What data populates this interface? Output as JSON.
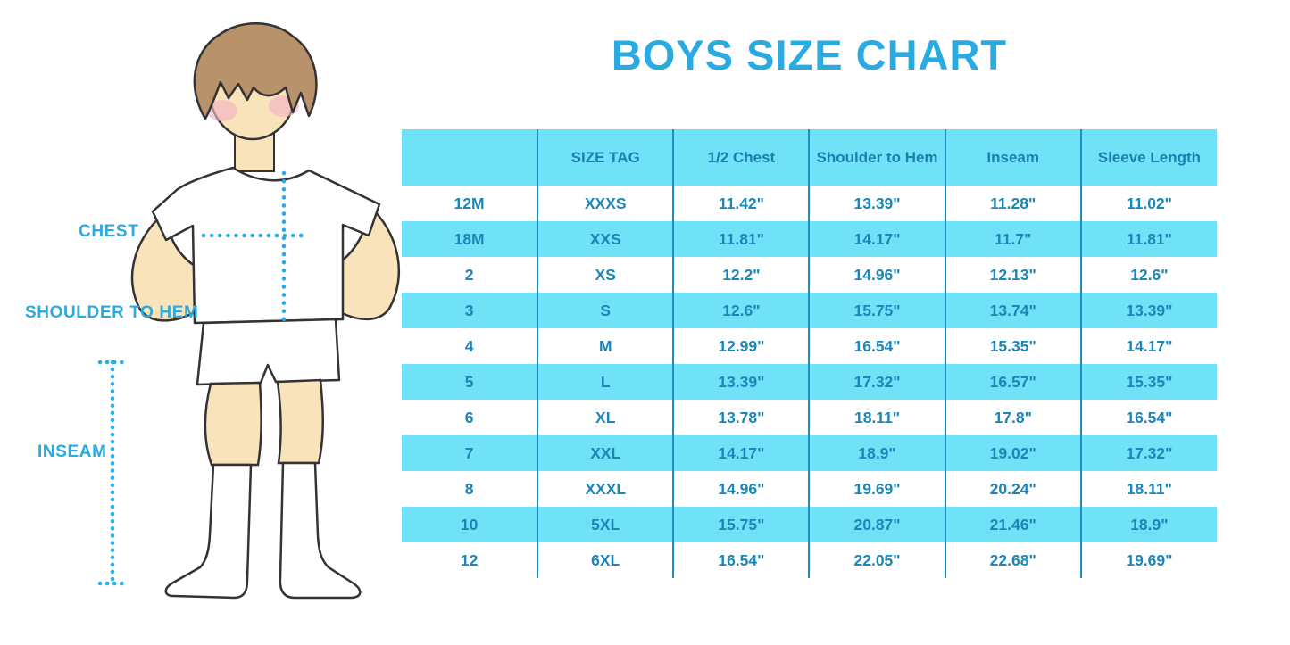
{
  "chart_data": {
    "type": "table",
    "title": "BOYS SIZE CHART",
    "columns": [
      "",
      "SIZE TAG",
      "1/2 Chest",
      "Shoulder to Hem",
      "Inseam",
      "Sleeve Length"
    ],
    "rows": [
      [
        "12M",
        "XXXS",
        "11.42\"",
        "13.39\"",
        "11.28\"",
        "11.02\""
      ],
      [
        "18M",
        "XXS",
        "11.81\"",
        "14.17\"",
        "11.7\"",
        "11.81\""
      ],
      [
        "2",
        "XS",
        "12.2\"",
        "14.96\"",
        "12.13\"",
        "12.6\""
      ],
      [
        "3",
        "S",
        "12.6\"",
        "15.75\"",
        "13.74\"",
        "13.39\""
      ],
      [
        "4",
        "M",
        "12.99\"",
        "16.54\"",
        "15.35\"",
        "14.17\""
      ],
      [
        "5",
        "L",
        "13.39\"",
        "17.32\"",
        "16.57\"",
        "15.35\""
      ],
      [
        "6",
        "XL",
        "13.78\"",
        "18.11\"",
        "17.8\"",
        "16.54\""
      ],
      [
        "7",
        "XXL",
        "14.17\"",
        "18.9\"",
        "19.02\"",
        "17.32\""
      ],
      [
        "8",
        "XXXL",
        "14.96\"",
        "19.69\"",
        "20.24\"",
        "18.11\""
      ],
      [
        "10",
        "5XL",
        "15.75\"",
        "20.87\"",
        "21.46\"",
        "18.9\""
      ],
      [
        "12",
        "6XL",
        "16.54\"",
        "22.05\"",
        "22.68\"",
        "19.69\""
      ]
    ],
    "layout": {
      "row_striping": [
        "white",
        "light-blue-alternating"
      ],
      "grid": "vertical-separators-only",
      "units": "inches"
    }
  },
  "figure": {
    "labels": {
      "chest": "CHEST",
      "shoulder_to_hem": "SHOULDER TO HEM",
      "inseam": "INSEAM"
    }
  },
  "colors": {
    "accent_title": "#29abe2",
    "table_band": "#70e2f8",
    "table_separator": "#1f8dbd",
    "table_text": "#1b86b8",
    "measure_dots": "#29abe2",
    "hair": "#b7926b",
    "skin": "#f9e3ba",
    "blush": "#f3b3c4",
    "outline": "#333333"
  }
}
